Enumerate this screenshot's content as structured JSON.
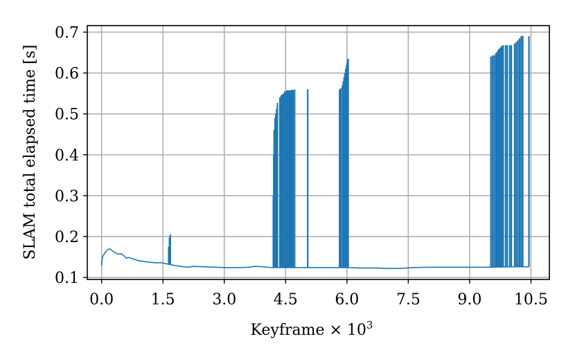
{
  "chart_data": {
    "type": "line",
    "xlabel": "Keyframe × 10",
    "xlabel_exponent": "3",
    "ylabel": "SLAM total elapsed time [s]",
    "xlim": [
      -0.35,
      10.95
    ],
    "ylim": [
      0.095,
      0.716
    ],
    "grid": true,
    "x_ticks": [
      0,
      1.5,
      3,
      4.5,
      6,
      7.5,
      9,
      10.5
    ],
    "x_tick_labels": [
      "0.0",
      "1.5",
      "3.0",
      "4.5",
      "6.0",
      "7.5",
      "9.0",
      "10.5"
    ],
    "y_ticks": [
      0.1,
      0.2,
      0.3,
      0.4,
      0.5,
      0.6,
      0.7
    ],
    "y_tick_labels": [
      "0.1",
      "0.2",
      "0.3",
      "0.4",
      "0.5",
      "0.6",
      "0.7"
    ],
    "series": [
      {
        "color": "#1f77b4",
        "baseline": [
          [
            0.0,
            0.128
          ],
          [
            0.02,
            0.15
          ],
          [
            0.08,
            0.16
          ],
          [
            0.15,
            0.168
          ],
          [
            0.2,
            0.17
          ],
          [
            0.25,
            0.166
          ],
          [
            0.32,
            0.161
          ],
          [
            0.4,
            0.157
          ],
          [
            0.48,
            0.158
          ],
          [
            0.55,
            0.153
          ],
          [
            0.6,
            0.147
          ],
          [
            0.65,
            0.149
          ],
          [
            0.75,
            0.146
          ],
          [
            0.9,
            0.141
          ],
          [
            1.1,
            0.138
          ],
          [
            1.3,
            0.136
          ],
          [
            1.45,
            0.136
          ],
          [
            1.6,
            0.133
          ],
          [
            1.8,
            0.129
          ],
          [
            2.0,
            0.126
          ],
          [
            2.1,
            0.125
          ],
          [
            2.25,
            0.127
          ],
          [
            2.5,
            0.126
          ],
          [
            2.8,
            0.125
          ],
          [
            3.0,
            0.124
          ],
          [
            3.4,
            0.124
          ],
          [
            3.6,
            0.125
          ],
          [
            3.75,
            0.127
          ],
          [
            3.95,
            0.126
          ],
          [
            4.2,
            0.124
          ],
          [
            4.6,
            0.124
          ],
          [
            5.0,
            0.124
          ],
          [
            5.5,
            0.124
          ],
          [
            6.0,
            0.124
          ],
          [
            6.3,
            0.123
          ],
          [
            6.7,
            0.123
          ],
          [
            7.0,
            0.122
          ],
          [
            7.3,
            0.122
          ],
          [
            7.6,
            0.124
          ],
          [
            8.0,
            0.125
          ],
          [
            8.5,
            0.125
          ],
          [
            9.0,
            0.125
          ],
          [
            9.5,
            0.125
          ],
          [
            10.0,
            0.126
          ],
          [
            10.45,
            0.126
          ]
        ],
        "spikes": [
          [
            1.64,
            0.175
          ],
          [
            1.66,
            0.198
          ],
          [
            1.68,
            0.205
          ],
          [
            4.2,
            0.3
          ],
          [
            4.21,
            0.4
          ],
          [
            4.22,
            0.46
          ],
          [
            4.24,
            0.49
          ],
          [
            4.26,
            0.5
          ],
          [
            4.28,
            0.512
          ],
          [
            4.3,
            0.527
          ],
          [
            4.36,
            0.54
          ],
          [
            4.39,
            0.545
          ],
          [
            4.42,
            0.548
          ],
          [
            4.45,
            0.55
          ],
          [
            4.48,
            0.555
          ],
          [
            4.5,
            0.553
          ],
          [
            4.52,
            0.557
          ],
          [
            4.55,
            0.558
          ],
          [
            4.58,
            0.557
          ],
          [
            4.6,
            0.558
          ],
          [
            4.62,
            0.558
          ],
          [
            4.64,
            0.556
          ],
          [
            4.66,
            0.559
          ],
          [
            4.68,
            0.558
          ],
          [
            4.72,
            0.56
          ],
          [
            5.04,
            0.56
          ],
          [
            5.82,
            0.56
          ],
          [
            5.85,
            0.563
          ],
          [
            5.89,
            0.57
          ],
          [
            5.91,
            0.58
          ],
          [
            5.93,
            0.59
          ],
          [
            5.95,
            0.6
          ],
          [
            5.97,
            0.61
          ],
          [
            5.99,
            0.62
          ],
          [
            6.01,
            0.63
          ],
          [
            6.03,
            0.635
          ],
          [
            9.52,
            0.64
          ],
          [
            9.56,
            0.643
          ],
          [
            9.6,
            0.643
          ],
          [
            9.64,
            0.648
          ],
          [
            9.67,
            0.652
          ],
          [
            9.7,
            0.657
          ],
          [
            9.73,
            0.66
          ],
          [
            9.76,
            0.663
          ],
          [
            9.79,
            0.667
          ],
          [
            9.82,
            0.668
          ],
          [
            9.88,
            0.668
          ],
          [
            9.92,
            0.668
          ],
          [
            9.98,
            0.668
          ],
          [
            10.02,
            0.668
          ],
          [
            10.1,
            0.672
          ],
          [
            10.14,
            0.676
          ],
          [
            10.18,
            0.68
          ],
          [
            10.22,
            0.685
          ],
          [
            10.26,
            0.69
          ],
          [
            10.3,
            0.691
          ],
          [
            10.45,
            0.69
          ]
        ]
      }
    ]
  }
}
